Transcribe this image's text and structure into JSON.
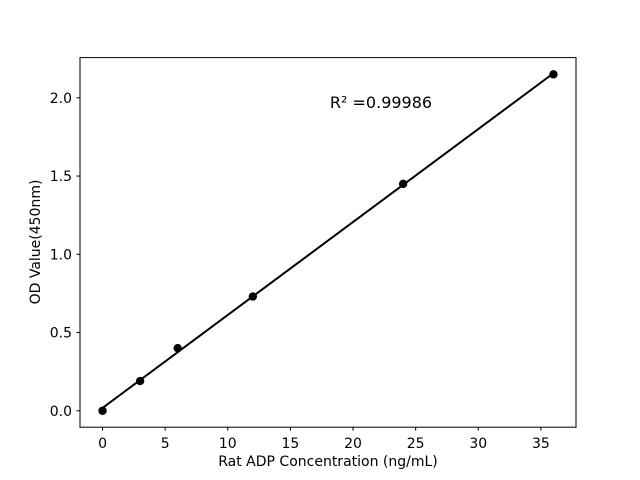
{
  "figure": {
    "background": "#ffffff"
  },
  "chart_data": {
    "type": "scatter",
    "title": "",
    "xlabel": "Rat ADP Concentration (ng/mL)",
    "ylabel": "OD Value(450nm)",
    "x": [
      0,
      3,
      6,
      12,
      24,
      36
    ],
    "y": [
      0.0,
      0.19,
      0.4,
      0.73,
      1.45,
      2.15
    ],
    "fit_line": {
      "x": [
        0,
        36
      ],
      "y": [
        0.018,
        2.157
      ]
    },
    "annotation": {
      "text": "R² =0.99986",
      "x": 22.2,
      "y": 1.94
    },
    "xlim": [
      -1.8,
      37.8
    ],
    "ylim": [
      -0.105,
      2.257
    ],
    "xticks": [
      {
        "v": 0,
        "label": "0"
      },
      {
        "v": 5,
        "label": "5"
      },
      {
        "v": 10,
        "label": "10"
      },
      {
        "v": 15,
        "label": "15"
      },
      {
        "v": 20,
        "label": "20"
      },
      {
        "v": 25,
        "label": "25"
      },
      {
        "v": 30,
        "label": "30"
      },
      {
        "v": 35,
        "label": "35"
      }
    ],
    "yticks": [
      {
        "v": 0.0,
        "label": "0.0"
      },
      {
        "v": 0.5,
        "label": "0.5"
      },
      {
        "v": 1.0,
        "label": "1.0"
      },
      {
        "v": 1.5,
        "label": "1.5"
      },
      {
        "v": 2.0,
        "label": "2.0"
      }
    ],
    "grid": false,
    "legend": null,
    "colors": {
      "line": "#000000",
      "marker": "#000000",
      "spine": "#000000",
      "text": "#000000",
      "background": "#ffffff"
    }
  }
}
